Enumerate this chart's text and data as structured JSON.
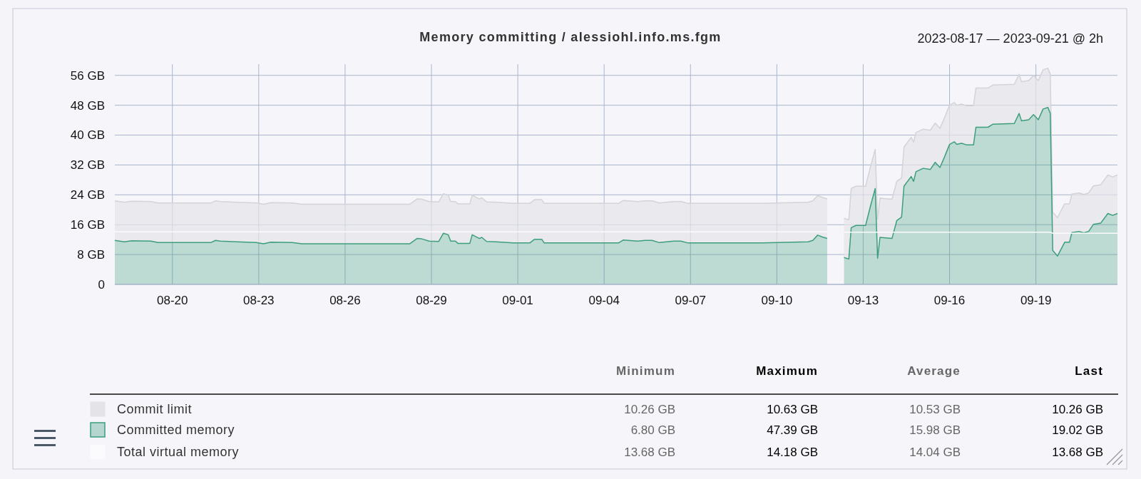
{
  "chart_data": {
    "type": "area",
    "title": "Memory committing / alessiohl.info.ms.fgm",
    "subtitle": "2023-08-17 — 2023-09-21 @ 2h",
    "stacked": true,
    "grid": true,
    "legend": "bottom",
    "xlim": [
      "2023-08-18T00:00",
      "2023-09-21T20:00"
    ],
    "xticks": [
      {
        "value": "2023-08-20",
        "label": "08-20"
      },
      {
        "value": "2023-08-23",
        "label": "08-23"
      },
      {
        "value": "2023-08-26",
        "label": "08-26"
      },
      {
        "value": "2023-08-29",
        "label": "08-29"
      },
      {
        "value": "2023-09-01",
        "label": "09-01"
      },
      {
        "value": "2023-09-04",
        "label": "09-04"
      },
      {
        "value": "2023-09-07",
        "label": "09-07"
      },
      {
        "value": "2023-09-10",
        "label": "09-10"
      },
      {
        "value": "2023-09-13",
        "label": "09-13"
      },
      {
        "value": "2023-09-16",
        "label": "09-16"
      },
      {
        "value": "2023-09-19",
        "label": "09-19"
      }
    ],
    "ylim": [
      0,
      59
    ],
    "yticks": [
      0,
      {
        "value": 8,
        "label": "8 GB"
      },
      {
        "value": 16,
        "label": "16 GB"
      },
      {
        "value": 24,
        "label": "24 GB"
      },
      {
        "value": 32,
        "label": "32 GB"
      },
      {
        "value": 40,
        "label": "40 GB"
      },
      {
        "value": 48,
        "label": "48 GB"
      },
      {
        "value": 56,
        "label": "56 GB"
      }
    ],
    "x": [
      "2023-08-18T00:00",
      "2023-08-18T08:00",
      "2023-08-18T14:00",
      "2023-08-19T06:00",
      "2023-08-19T12:00",
      "2023-08-21T08:00",
      "2023-08-21T12:00",
      "2023-08-21T16:00",
      "2023-08-22T06:00",
      "2023-08-22T22:00",
      "2023-08-23T04:00",
      "2023-08-23T10:00",
      "2023-08-24T04:00",
      "2023-08-24T12:00",
      "2023-08-26T00:00",
      "2023-08-28T06:00",
      "2023-08-28T12:00",
      "2023-08-28T16:00",
      "2023-08-28T22:00",
      "2023-08-29T06:00",
      "2023-08-29T10:00",
      "2023-08-29T14:00",
      "2023-08-29T16:00",
      "2023-08-29T20:00",
      "2023-08-29T22:00",
      "2023-08-30T08:00",
      "2023-08-30T10:00",
      "2023-08-30T16:00",
      "2023-08-30T18:00",
      "2023-08-30T22:00",
      "2023-08-31T06:00",
      "2023-08-31T20:00",
      "2023-09-01T10:00",
      "2023-09-01T14:00",
      "2023-09-01T20:00",
      "2023-09-01T22:00",
      "2023-09-04T12:00",
      "2023-09-04T16:00",
      "2023-09-05T04:00",
      "2023-09-05T10:00",
      "2023-09-05T16:00",
      "2023-09-05T22:00",
      "2023-09-06T10:00",
      "2023-09-06T16:00",
      "2023-09-06T22:00",
      "2023-09-09T12:00",
      "2023-09-11T02:00",
      "2023-09-11T06:00",
      "2023-09-11T10:00",
      "2023-09-11T14:00",
      "2023-09-11T18:00",
      "2023-09-12T00:00",
      "2023-09-12T08:00",
      "2023-09-12T12:00",
      "2023-09-12T14:00",
      "2023-09-12T18:00",
      "2023-09-13T02:00",
      "2023-09-13T06:00",
      "2023-09-13T10:00",
      "2023-09-13T12:00",
      "2023-09-13T14:00",
      "2023-09-14T00:00",
      "2023-09-14T04:00",
      "2023-09-14T08:00",
      "2023-09-14T10:00",
      "2023-09-14T16:00",
      "2023-09-14T18:00",
      "2023-09-14T20:00",
      "2023-09-15T02:00",
      "2023-09-15T08:00",
      "2023-09-15T12:00",
      "2023-09-15T16:00",
      "2023-09-15T20:00",
      "2023-09-16T00:00",
      "2023-09-16T04:00",
      "2023-09-16T06:00",
      "2023-09-16T10:00",
      "2023-09-16T14:00",
      "2023-09-16T20:00",
      "2023-09-16T22:00",
      "2023-09-17T08:00",
      "2023-09-17T12:00",
      "2023-09-18T06:00",
      "2023-09-18T10:00",
      "2023-09-18T12:00",
      "2023-09-18T18:00",
      "2023-09-18T22:00",
      "2023-09-19T02:00",
      "2023-09-19T06:00",
      "2023-09-19T10:00",
      "2023-09-19T12:00",
      "2023-09-19T14:00",
      "2023-09-19T18:00",
      "2023-09-20T00:00",
      "2023-09-20T04:00",
      "2023-09-20T06:00",
      "2023-09-20T12:00",
      "2023-09-20T16:00",
      "2023-09-20T20:00",
      "2023-09-21T00:00",
      "2023-09-21T06:00",
      "2023-09-21T12:00",
      "2023-09-21T16:00",
      "2023-09-21T20:00"
    ],
    "series": [
      {
        "name": "Committed memory",
        "color": "#3d9e7c",
        "values": [
          11.8,
          11.4,
          11.7,
          11.6,
          11.2,
          11.2,
          11.8,
          11.6,
          11.4,
          11.2,
          10.9,
          11.3,
          11.2,
          10.9,
          10.9,
          10.9,
          12.3,
          12.2,
          11.6,
          11.5,
          13.7,
          13.3,
          11.6,
          11.6,
          11.0,
          11.0,
          13.3,
          12.3,
          12.6,
          11.5,
          11.4,
          11.1,
          11.1,
          12.1,
          12.1,
          11.1,
          11.1,
          11.9,
          11.6,
          11.8,
          11.8,
          11.2,
          11.6,
          11.6,
          11.1,
          11.1,
          11.4,
          11.8,
          13.2,
          12.7,
          12.3,
          null,
          7.2,
          6.8,
          15.2,
          15.8,
          15.8,
          20.9,
          25.7,
          7.0,
          12.6,
          12.3,
          17.1,
          18.0,
          26.3,
          28.9,
          27.6,
          30.2,
          31.1,
          30.8,
          32.7,
          31.3,
          34.3,
          37.5,
          38.2,
          37.5,
          37.8,
          37.4,
          37.4,
          42.1,
          42.1,
          42.9,
          43.1,
          45.8,
          43.8,
          44.1,
          45.5,
          44.1,
          47.0,
          47.4,
          45.8,
          9.1,
          7.6,
          11.3,
          11.3,
          13.9,
          14.2,
          13.8,
          14.2,
          16.1,
          16.4,
          19.0,
          18.5,
          19.0
        ]
      },
      {
        "name": "Commit limit",
        "color": "#e4e4e8",
        "values": [
          10.6,
          10.6,
          10.6,
          10.6,
          10.6,
          10.6,
          10.6,
          10.6,
          10.6,
          10.6,
          10.6,
          10.6,
          10.6,
          10.6,
          10.6,
          10.6,
          10.6,
          10.6,
          10.6,
          10.6,
          10.6,
          10.6,
          10.6,
          10.6,
          10.6,
          10.6,
          10.6,
          10.6,
          10.6,
          10.6,
          10.6,
          10.6,
          10.6,
          10.6,
          10.6,
          10.6,
          10.6,
          10.6,
          10.6,
          10.6,
          10.6,
          10.6,
          10.6,
          10.6,
          10.6,
          10.6,
          10.6,
          10.6,
          10.6,
          10.6,
          10.6,
          null,
          10.5,
          10.5,
          10.5,
          10.5,
          10.5,
          10.5,
          10.5,
          10.5,
          10.5,
          10.5,
          10.5,
          10.5,
          10.5,
          10.5,
          10.5,
          10.5,
          10.5,
          10.5,
          10.5,
          10.5,
          10.5,
          10.5,
          10.5,
          10.5,
          10.5,
          10.5,
          10.5,
          10.5,
          10.5,
          10.5,
          10.5,
          10.5,
          10.5,
          10.5,
          10.5,
          10.5,
          10.5,
          10.5,
          10.5,
          10.3,
          10.3,
          10.3,
          10.3,
          10.3,
          10.3,
          10.3,
          10.3,
          10.3,
          10.3,
          10.3,
          10.3,
          10.3
        ]
      },
      {
        "name": "Total virtual memory",
        "type": "line",
        "color": "#fbfbfd",
        "values": [
          14.1,
          14.1,
          14.1,
          14.1,
          14.1,
          14.1,
          14.1,
          14.1,
          14.1,
          14.1,
          14.1,
          14.1,
          14.1,
          14.1,
          14.1,
          14.1,
          14.1,
          14.1,
          14.1,
          14.1,
          14.1,
          14.1,
          14.1,
          14.1,
          14.1,
          14.1,
          14.1,
          14.1,
          14.1,
          14.1,
          14.1,
          14.1,
          14.1,
          14.1,
          14.1,
          14.1,
          14.1,
          14.1,
          14.1,
          14.1,
          14.1,
          14.1,
          14.1,
          14.1,
          14.1,
          14.1,
          14.1,
          14.1,
          14.1,
          14.1,
          14.1,
          null,
          14.0,
          14.0,
          14.0,
          14.0,
          14.0,
          14.0,
          14.0,
          14.0,
          14.0,
          14.0,
          14.0,
          14.0,
          14.0,
          14.0,
          14.0,
          14.0,
          14.0,
          14.0,
          14.0,
          14.0,
          14.0,
          14.0,
          14.0,
          14.0,
          14.0,
          14.0,
          14.0,
          14.0,
          14.0,
          14.0,
          14.0,
          14.0,
          14.0,
          14.0,
          14.0,
          14.0,
          14.0,
          14.0,
          14.0,
          13.7,
          13.7,
          13.7,
          13.7,
          13.7,
          13.7,
          13.7,
          13.7,
          13.7,
          13.7,
          13.7,
          13.7,
          13.7
        ]
      }
    ],
    "annotations": [
      "Minimum",
      "Maximum",
      "Average",
      "Last",
      "6.80 GB",
      "47.39 GB",
      "15.98 GB",
      "19.02 GB",
      "10.26 GB",
      "10.63 GB",
      "10.53 GB",
      "10.26 GB",
      "13.68 GB",
      "14.18 GB",
      "14.04 GB",
      "13.68 GB"
    ]
  }
}
